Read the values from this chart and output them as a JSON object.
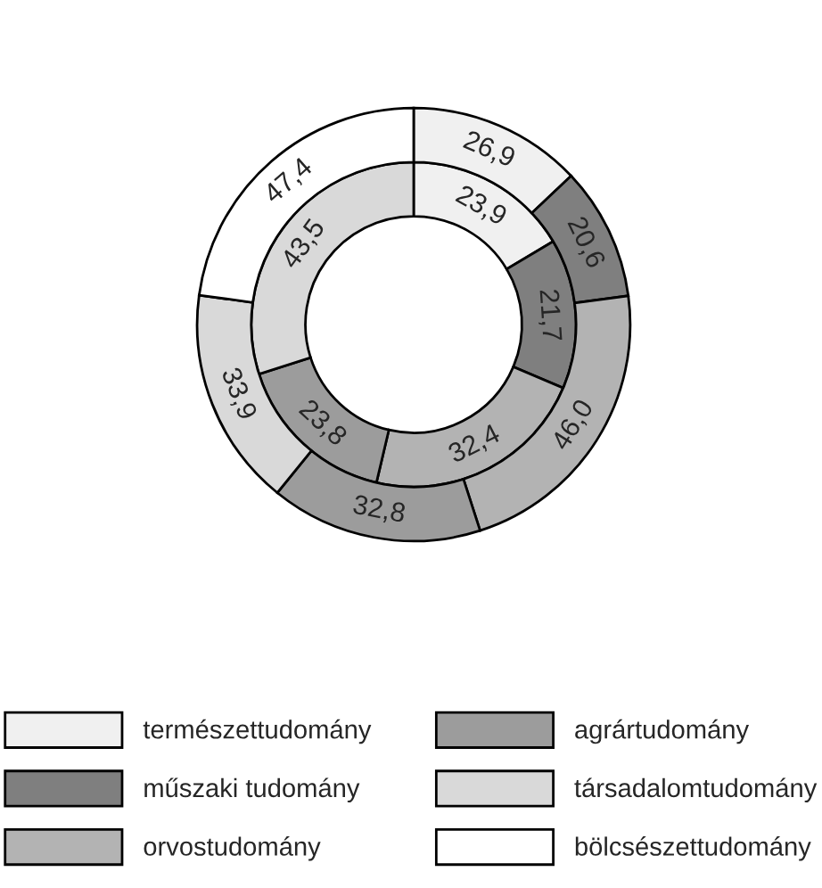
{
  "chart_data": {
    "type": "donut",
    "categories": [
      "természettudomány",
      "műszaki tudomány",
      "orvostudomány",
      "agrártudomány",
      "társadalomtudomány",
      "bölcsészettudomány"
    ],
    "colors": [
      "#f0f0f0",
      "#7f7f7f",
      "#b3b3b3",
      "#9c9c9c",
      "#d9d9d9",
      "#ffffff"
    ],
    "series": [
      {
        "values": [
          23.9,
          21.7,
          32.4,
          23.8,
          43.5,
          null
        ],
        "value_labels": [
          "23,9",
          "21,7",
          "32,4",
          "23,8",
          "43,5",
          null
        ]
      },
      {
        "values": [
          26.9,
          20.6,
          46.0,
          32.8,
          33.9,
          47.4
        ],
        "value_labels": [
          "26,9",
          "20,6",
          "46,0",
          "32,8",
          "33,9",
          "47,4"
        ]
      }
    ],
    "legend": "bottom"
  }
}
